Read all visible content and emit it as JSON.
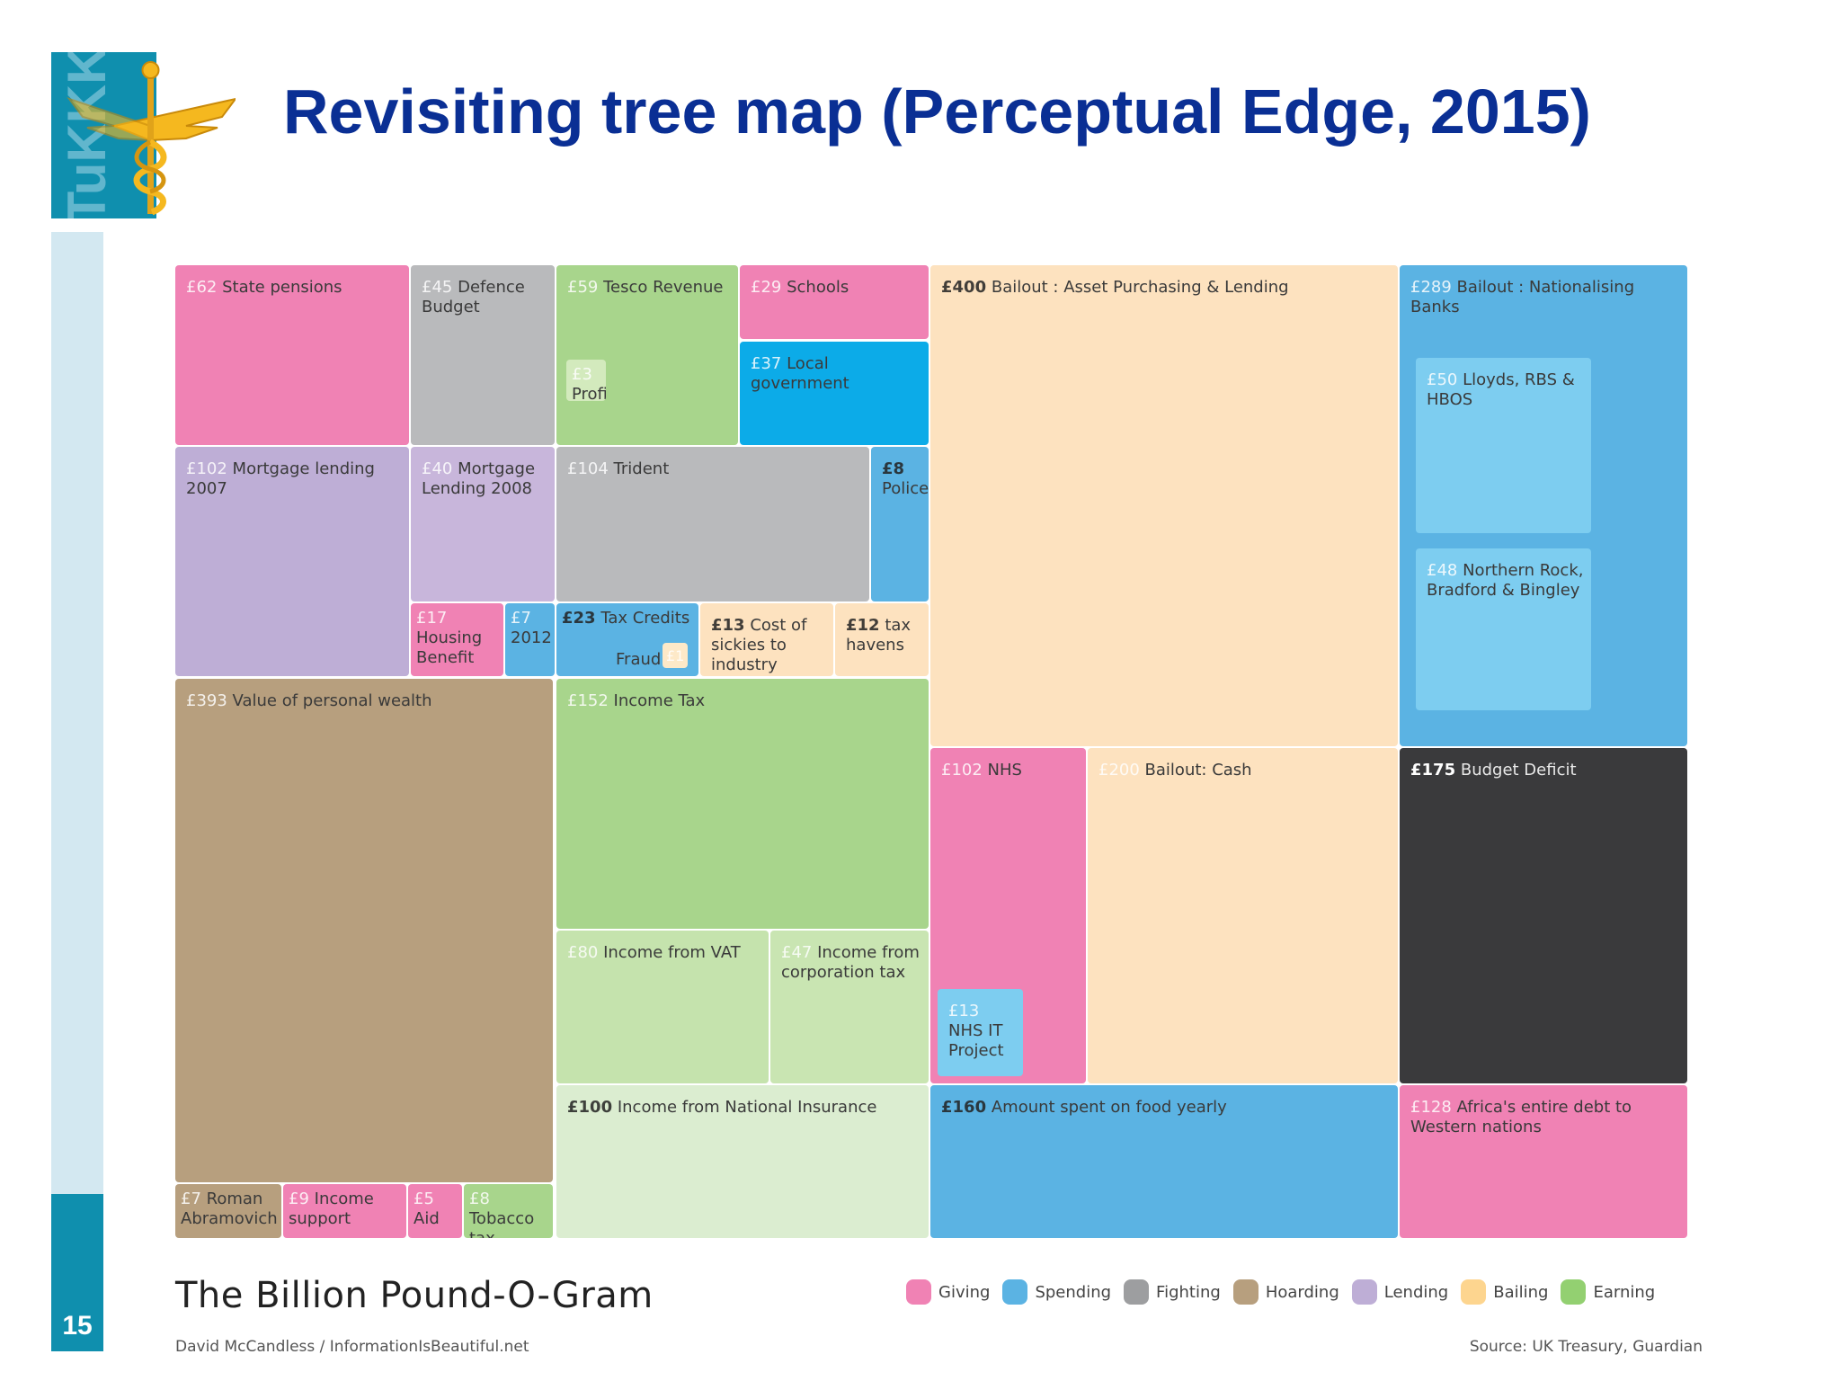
{
  "slide": {
    "title": "Revisiting tree map (Perceptual Edge, 2015)",
    "number": "15",
    "logo_text": "TuKKK"
  },
  "colors": {
    "title_blue": "#0a2f94",
    "giving": "#f082b4",
    "spending": "#5bb3e3",
    "fighting": "#b9babc",
    "hoarding": "#b79f7e",
    "lending": "#beaed6",
    "bailing": "#fde2bf",
    "earning": "#a8d58c"
  },
  "chart_data": {
    "type": "treemap",
    "title": "The Billion Pound-O-Gram",
    "credit": "David McCandless / InformationIsBeautiful.net",
    "source": "Source: UK Treasury, Guardian",
    "legend": [
      {
        "label": "Giving",
        "color": "#f082b4"
      },
      {
        "label": "Spending",
        "color": "#5bb3e3"
      },
      {
        "label": "Fighting",
        "color": "#9d9ea0"
      },
      {
        "label": "Hoarding",
        "color": "#b79f7e"
      },
      {
        "label": "Lending",
        "color": "#beaed6"
      },
      {
        "label": "Bailing",
        "color": "#fdd58f"
      },
      {
        "label": "Earning",
        "color": "#93d071"
      }
    ],
    "items": [
      {
        "amount": "£62",
        "label": "State pensions",
        "value": 62,
        "category": "Giving"
      },
      {
        "amount": "£45",
        "label": "Defence Budget",
        "value": 45,
        "category": "Fighting"
      },
      {
        "amount": "£59",
        "label": "Tesco Revenue",
        "value": 59,
        "category": "Earning"
      },
      {
        "amount": "£3",
        "label": "Profits",
        "value": 3,
        "category": "Earning"
      },
      {
        "amount": "£29",
        "label": "Schools",
        "value": 29,
        "category": "Giving"
      },
      {
        "amount": "£37",
        "label": "Local government",
        "value": 37,
        "category": "Spending"
      },
      {
        "amount": "£400",
        "label": "Bailout : Asset Purchasing & Lending",
        "value": 400,
        "category": "Bailing"
      },
      {
        "amount": "£289",
        "label": "Bailout : Nationalising Banks",
        "value": 289,
        "category": "Spending"
      },
      {
        "amount": "£50",
        "label": "Lloyds, RBS & HBOS",
        "value": 50,
        "category": "Spending"
      },
      {
        "amount": "£48",
        "label": "Northern Rock, Bradford & Bingley",
        "value": 48,
        "category": "Spending"
      },
      {
        "amount": "£102",
        "label": "Mortgage lending 2007",
        "value": 102,
        "category": "Lending"
      },
      {
        "amount": "£40",
        "label": "Mortgage Lending 2008",
        "value": 40,
        "category": "Lending"
      },
      {
        "amount": "£104",
        "label": "Trident",
        "value": 104,
        "category": "Fighting"
      },
      {
        "amount": "£8",
        "label": "Police",
        "value": 8,
        "category": "Spending"
      },
      {
        "amount": "£17",
        "label": "Housing Benefit",
        "value": 17,
        "category": "Giving"
      },
      {
        "amount": "£7",
        "label": "2012",
        "value": 7,
        "category": "Spending"
      },
      {
        "amount": "£23",
        "label": "Tax Credits",
        "value": 23,
        "category": "Spending"
      },
      {
        "amount": "£1",
        "label": "Fraud",
        "value": 1,
        "category": "Bailing"
      },
      {
        "amount": "£13",
        "label": "Cost of sickies to industry",
        "value": 13,
        "category": "Bailing"
      },
      {
        "amount": "£12",
        "label": "tax havens",
        "value": 12,
        "category": "Bailing"
      },
      {
        "amount": "£393",
        "label": "Value of personal wealth",
        "value": 393,
        "category": "Hoarding"
      },
      {
        "amount": "£152",
        "label": "Income Tax",
        "value": 152,
        "category": "Earning"
      },
      {
        "amount": "£80",
        "label": "Income from VAT",
        "value": 80,
        "category": "Earning"
      },
      {
        "amount": "£47",
        "label": "Income from corporation tax",
        "value": 47,
        "category": "Earning"
      },
      {
        "amount": "£100",
        "label": "Income from National Insurance",
        "value": 100,
        "category": "Earning"
      },
      {
        "amount": "£102",
        "label": "NHS",
        "value": 102,
        "category": "Giving"
      },
      {
        "amount": "£13",
        "label": "NHS IT Project",
        "value": 13,
        "category": "Spending"
      },
      {
        "amount": "£200",
        "label": "Bailout: Cash",
        "value": 200,
        "category": "Bailing"
      },
      {
        "amount": "£175",
        "label": "Budget Deficit",
        "value": 175,
        "category": "Other"
      },
      {
        "amount": "£160",
        "label": "Amount spent on food yearly",
        "value": 160,
        "category": "Spending"
      },
      {
        "amount": "£128",
        "label": "Africa's entire debt to Western nations",
        "value": 128,
        "category": "Giving"
      },
      {
        "amount": "£7",
        "label": "Roman Abramovich",
        "value": 7,
        "category": "Hoarding"
      },
      {
        "amount": "£9",
        "label": "Income support",
        "value": 9,
        "category": "Giving"
      },
      {
        "amount": "£5",
        "label": "Aid",
        "value": 5,
        "category": "Giving"
      },
      {
        "amount": "£8",
        "label": "Tobacco tax",
        "value": 8,
        "category": "Earning"
      }
    ]
  }
}
